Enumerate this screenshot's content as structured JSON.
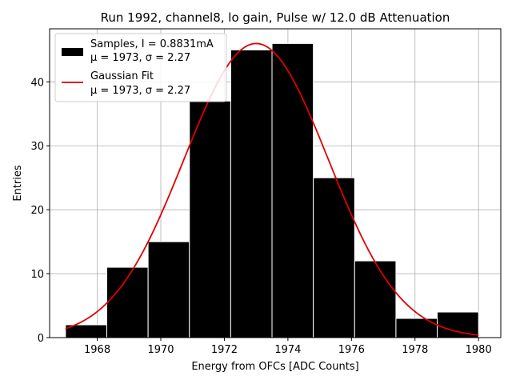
{
  "chart_data": {
    "type": "bar",
    "title": "Run 1992, channel8, lo gain, Pulse w/ 12.0 dB Attenuation",
    "xlabel": "Energy from OFCs [ADC Counts]",
    "ylabel": "Entries",
    "xlim": [
      1966.5,
      1980.7
    ],
    "ylim": [
      0,
      48.3
    ],
    "xticks": [
      1968,
      1970,
      1972,
      1974,
      1976,
      1978,
      1980
    ],
    "yticks": [
      0,
      10,
      20,
      30,
      40
    ],
    "grid": true,
    "histogram": {
      "bin_edges": [
        1967.0,
        1968.3,
        1969.6,
        1970.9,
        1972.2,
        1973.5,
        1974.8,
        1976.1,
        1977.4,
        1978.7,
        1980.0
      ],
      "counts": [
        2,
        11,
        15,
        37,
        45,
        46,
        25,
        12,
        3,
        4
      ],
      "color": "#000000"
    },
    "fit": {
      "type": "gaussian",
      "amplitude": 46,
      "mu": 1973,
      "sigma": 2.27,
      "x_range": [
        1967.0,
        1980.0
      ],
      "color": "#e00000"
    },
    "legend": {
      "position": "top-left",
      "entries": [
        {
          "line1": "Samples, I = 0.8831mA",
          "line2": "μ = 1973, σ = 2.27",
          "marker": "bar"
        },
        {
          "line1": "Gaussian Fit",
          "line2": "μ = 1973, σ = 2.27",
          "marker": "line"
        }
      ]
    }
  }
}
